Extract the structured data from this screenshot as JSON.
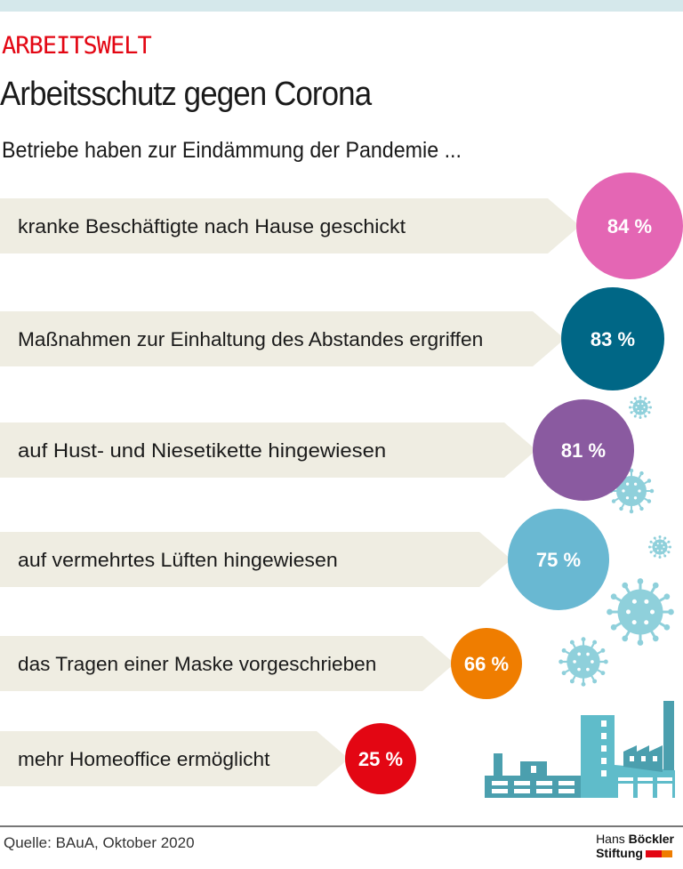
{
  "header": {
    "kicker": "ARBEITSWELT",
    "title": "Arbeitsschutz gegen Corona",
    "subtitle": "Betriebe haben zur Eindämmung der Pandemie  ..."
  },
  "chart_data": {
    "type": "bar",
    "categories": [
      "kranke Beschäftigte nach Hause geschickt",
      "Maßnahmen zur Einhaltung des Abstandes ergriffen",
      "auf Hust- und Niesetikette hingewiesen",
      "auf vermehrtes Lüften hingewiesen",
      "das Tragen einer Maske vorgeschrieben",
      "mehr Homeoffice ermöglicht"
    ],
    "values": [
      84,
      83,
      81,
      75,
      66,
      25
    ],
    "value_labels": [
      "84 %",
      "83 %",
      "81 %",
      "75 %",
      "66 %",
      "25 %"
    ],
    "unit": "%",
    "colors": [
      "#e466b4",
      "#006786",
      "#8a5aa0",
      "#69b8d2",
      "#ef7d00",
      "#e30613"
    ]
  },
  "footer": {
    "source": "Quelle: BAuA, Oktober 2020",
    "logo_line1_a": "Hans ",
    "logo_line1_b": "Böckler",
    "logo_line2": "Stiftung"
  }
}
